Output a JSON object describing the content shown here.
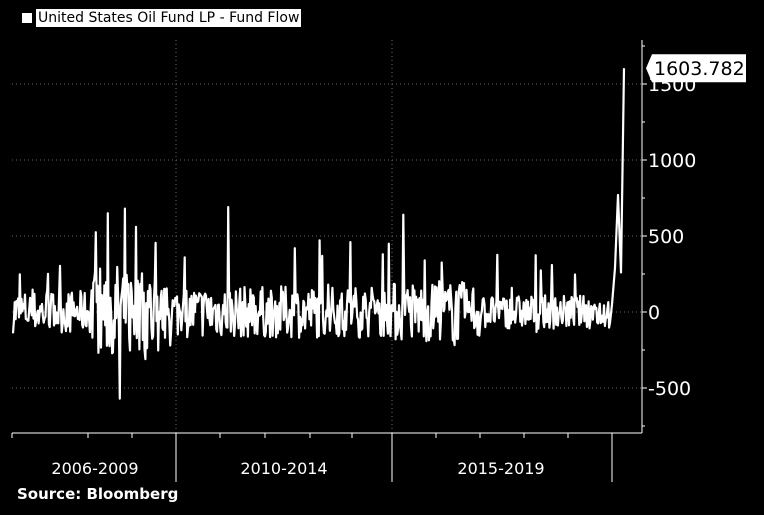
{
  "legend": {
    "swatch_color": "#ffffff",
    "label": "United States Oil Fund LP - Fund Flow"
  },
  "source": "Source: Bloomberg",
  "chart_data": {
    "type": "line",
    "series": [
      {
        "name": "United States Oil Fund LP - Fund Flow",
        "color": "#ffffff"
      }
    ],
    "x_periods": [
      "2006-2009",
      "2010-2014",
      "2015-2019"
    ],
    "ylim": [
      -800,
      1800
    ],
    "yticks": [
      -500,
      0,
      500,
      1000,
      1500
    ],
    "grid": true,
    "last_value_label": "1603.782",
    "key_points": {
      "min": -570,
      "max_2006_2009": 680,
      "max_2010_2014": 690,
      "max_2015_2019": 660,
      "final_run_up": [
        50,
        290,
        770,
        260,
        1603.782
      ]
    }
  }
}
